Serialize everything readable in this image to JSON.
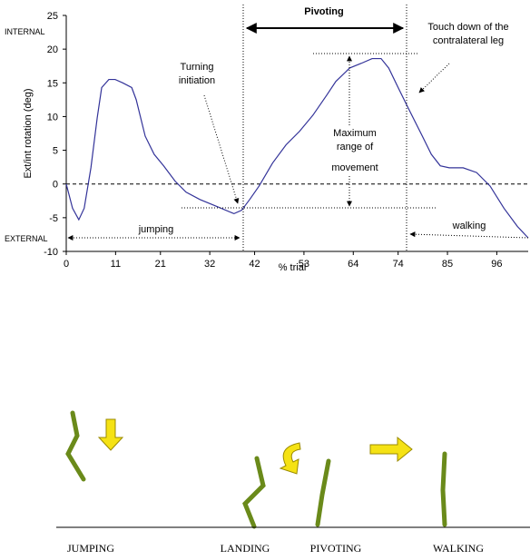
{
  "chart_data": {
    "type": "line",
    "x_label": "% trial",
    "y_label": "Ext/int rotation (deg)",
    "x": [
      0,
      1.4,
      2.8,
      4,
      5.5,
      6.9,
      7.9,
      9.5,
      10.9,
      12.6,
      14.6,
      15.6,
      17.6,
      19.6,
      21.7,
      24.3,
      26.7,
      29.8,
      33.8,
      37.4,
      39.1,
      40.9,
      43,
      46,
      49,
      52,
      55,
      58.1,
      60.1,
      63.2,
      65.8,
      68.2,
      70.2,
      71.9,
      74.3,
      76.3,
      79.4,
      81.4,
      83.4,
      85.4,
      88.5,
      91.5,
      94.5,
      97.6,
      100.6,
      103
    ],
    "values": [
      0,
      -3.6,
      -5.3,
      -3.6,
      2.4,
      9.8,
      14.3,
      15.5,
      15.5,
      15,
      14.3,
      12.5,
      7.1,
      4.4,
      2.7,
      0.4,
      -1.2,
      -2.3,
      -3.4,
      -4.4,
      -3.9,
      -2.3,
      -0.3,
      3.1,
      5.8,
      7.8,
      10.2,
      13.2,
      15.2,
      17.2,
      17.9,
      18.6,
      18.6,
      17.2,
      13.9,
      11.2,
      7.1,
      4.4,
      2.7,
      2.4,
      2.4,
      1.7,
      -0.3,
      -3.6,
      -6.3,
      -8
    ],
    "color": "#333399",
    "xlim": [
      0,
      103
    ],
    "xticks": [
      0,
      11,
      21,
      32,
      42,
      53,
      64,
      74,
      85,
      96
    ],
    "ylim": [
      -10,
      25
    ],
    "yticks": [
      -10,
      -5,
      0,
      5,
      10,
      15,
      20,
      25
    ],
    "annotations": [
      "Pivoting",
      "Touch down of the",
      "contralateral leg",
      "Turning",
      "initiation",
      "Maximum",
      "range of",
      "movement",
      "jumping",
      "walking",
      "INTERNAL",
      "EXTERNAL"
    ]
  },
  "illustration": {
    "labels": [
      "JUMPING",
      "LANDING",
      "PIVOTING",
      "WALKING"
    ]
  }
}
